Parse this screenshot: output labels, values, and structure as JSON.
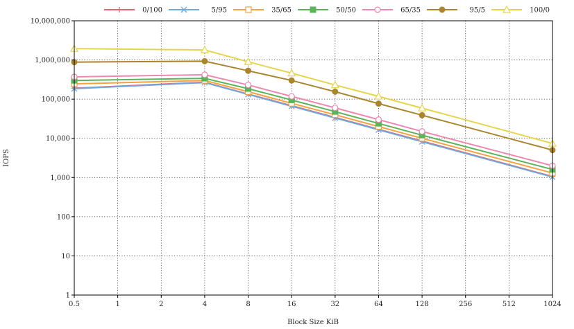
{
  "chart_data": {
    "type": "line",
    "title": "",
    "xlabel": "Block Size KiB",
    "ylabel": "IOPS",
    "x_scale": "log2",
    "y_scale": "log10",
    "x": [
      0.5,
      4,
      8,
      16,
      32,
      64,
      128,
      1024
    ],
    "x_tick_labels": [
      "0.5",
      "1",
      "2",
      "4",
      "8",
      "16",
      "32",
      "64",
      "128",
      "256",
      "512",
      "1024"
    ],
    "x_ticks": [
      0.5,
      1,
      2,
      4,
      8,
      16,
      32,
      64,
      128,
      256,
      512,
      1024
    ],
    "y_tick_labels": [
      "1",
      "10",
      "100",
      "1,000",
      "10,000",
      "100,000",
      "1,000,000",
      "10,000,000"
    ],
    "y_ticks": [
      1,
      10,
      100,
      1000,
      10000,
      100000,
      1000000,
      10000000
    ],
    "ylim": [
      1,
      10000000
    ],
    "xlim": [
      0.5,
      1024
    ],
    "grid": true,
    "legend_position": "top",
    "series": [
      {
        "name": "0/100",
        "color": "#e8636b",
        "marker": "plus",
        "values": [
          190000,
          270000,
          135000,
          68000,
          34000,
          17000,
          8500,
          1060
        ]
      },
      {
        "name": "5/95",
        "color": "#6fa8dc",
        "marker": "x",
        "values": [
          185000,
          265000,
          132000,
          66000,
          33000,
          16500,
          8200,
          1030
        ]
      },
      {
        "name": "35/65",
        "color": "#f6a13c",
        "marker": "square-open",
        "values": [
          245000,
          300000,
          155000,
          78000,
          40000,
          20000,
          10000,
          1300
        ]
      },
      {
        "name": "50/50",
        "color": "#5ab55a",
        "marker": "square-filled",
        "values": [
          300000,
          340000,
          185000,
          95000,
          48000,
          24000,
          12000,
          1600
        ]
      },
      {
        "name": "65/35",
        "color": "#ef86b0",
        "marker": "circle-open",
        "values": [
          370000,
          420000,
          230000,
          118000,
          60000,
          30000,
          15000,
          2000
        ]
      },
      {
        "name": "95/5",
        "color": "#a9862e",
        "marker": "circle-filled",
        "values": [
          880000,
          930000,
          530000,
          300000,
          155000,
          77000,
          39000,
          5000
        ]
      },
      {
        "name": "100/0",
        "color": "#e6d44c",
        "marker": "triangle-open",
        "values": [
          1950000,
          1800000,
          900000,
          460000,
          230000,
          118000,
          59000,
          7400
        ]
      }
    ]
  }
}
